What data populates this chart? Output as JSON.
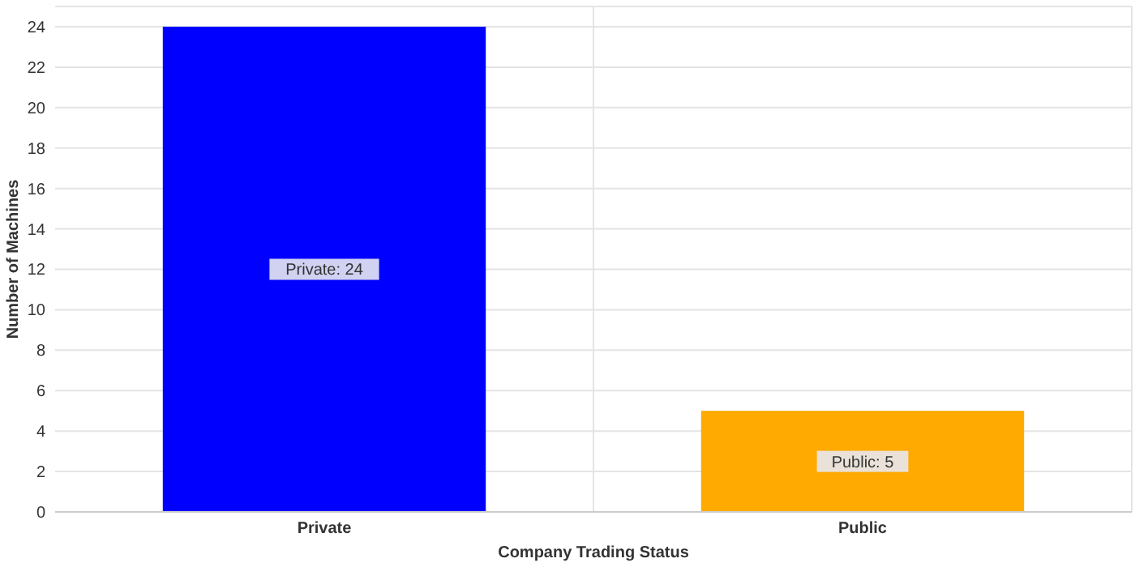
{
  "chart_data": {
    "type": "bar",
    "xlabel": "Company Trading Status",
    "ylabel": "Number of Machines",
    "categories": [
      "Private",
      "Public"
    ],
    "values": [
      24,
      5
    ],
    "colors": [
      "#0000ff",
      "#ffaa00"
    ],
    "ylim": [
      0,
      25
    ],
    "yticks": [
      0,
      2,
      4,
      6,
      8,
      10,
      12,
      14,
      16,
      18,
      20,
      22,
      24
    ],
    "grid": true,
    "value_labels": [
      "Private: 24",
      "Public: 5"
    ]
  }
}
